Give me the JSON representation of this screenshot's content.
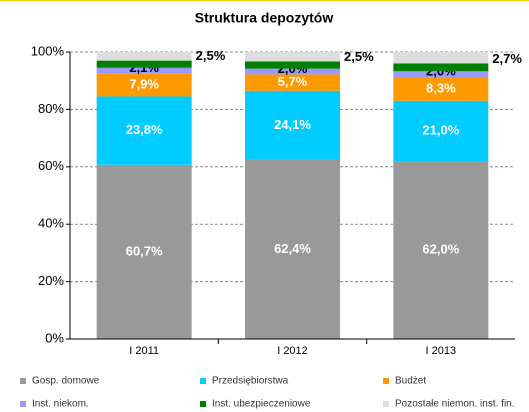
{
  "chart_data": {
    "type": "stacked_bar",
    "title": "Struktura depozytów",
    "categories": [
      "I 2011",
      "I 2012",
      "I 2013"
    ],
    "series": [
      {
        "name": "Gosp. domowe",
        "color": "#999999",
        "values": [
          60.7,
          62.4,
          62.0
        ],
        "value_labels": [
          "60,7%",
          "62,4%",
          "62,0%"
        ]
      },
      {
        "name": "Przedsiębiorstwa",
        "color": "#00ccff",
        "values": [
          23.8,
          24.1,
          21.0
        ],
        "value_labels": [
          "23,8%",
          "24,1%",
          "21,0%"
        ]
      },
      {
        "name": "Budżet",
        "color": "#ff9900",
        "values": [
          7.9,
          5.7,
          8.3
        ],
        "value_labels": [
          "7,9%",
          "5,7%",
          "8,3%"
        ]
      },
      {
        "name": "Inst. niekom.",
        "color": "#9999ff",
        "values": [
          2.1,
          2.0,
          2.0
        ],
        "value_labels": [
          "2,1%",
          "2,0%",
          "2,0%"
        ]
      },
      {
        "name": "Inst. ubezpieczeniowe",
        "color": "#008000",
        "values": [
          2.5,
          2.5,
          2.7
        ],
        "value_labels": [
          "2,5%",
          "2,5%",
          "2,7%"
        ]
      },
      {
        "name": "Pozostałe niemon. inst. fin.",
        "color": "#dddddd",
        "values": [
          3.0,
          3.3,
          4.0
        ]
      }
    ],
    "ylim": [
      0,
      100
    ],
    "yticks": [
      {
        "value": 0,
        "label": "0%"
      },
      {
        "value": 20,
        "label": "20%"
      },
      {
        "value": 40,
        "label": "40%"
      },
      {
        "value": 60,
        "label": "60%"
      },
      {
        "value": 80,
        "label": "80%"
      },
      {
        "value": 100,
        "label": "100%"
      }
    ],
    "grid": true
  }
}
